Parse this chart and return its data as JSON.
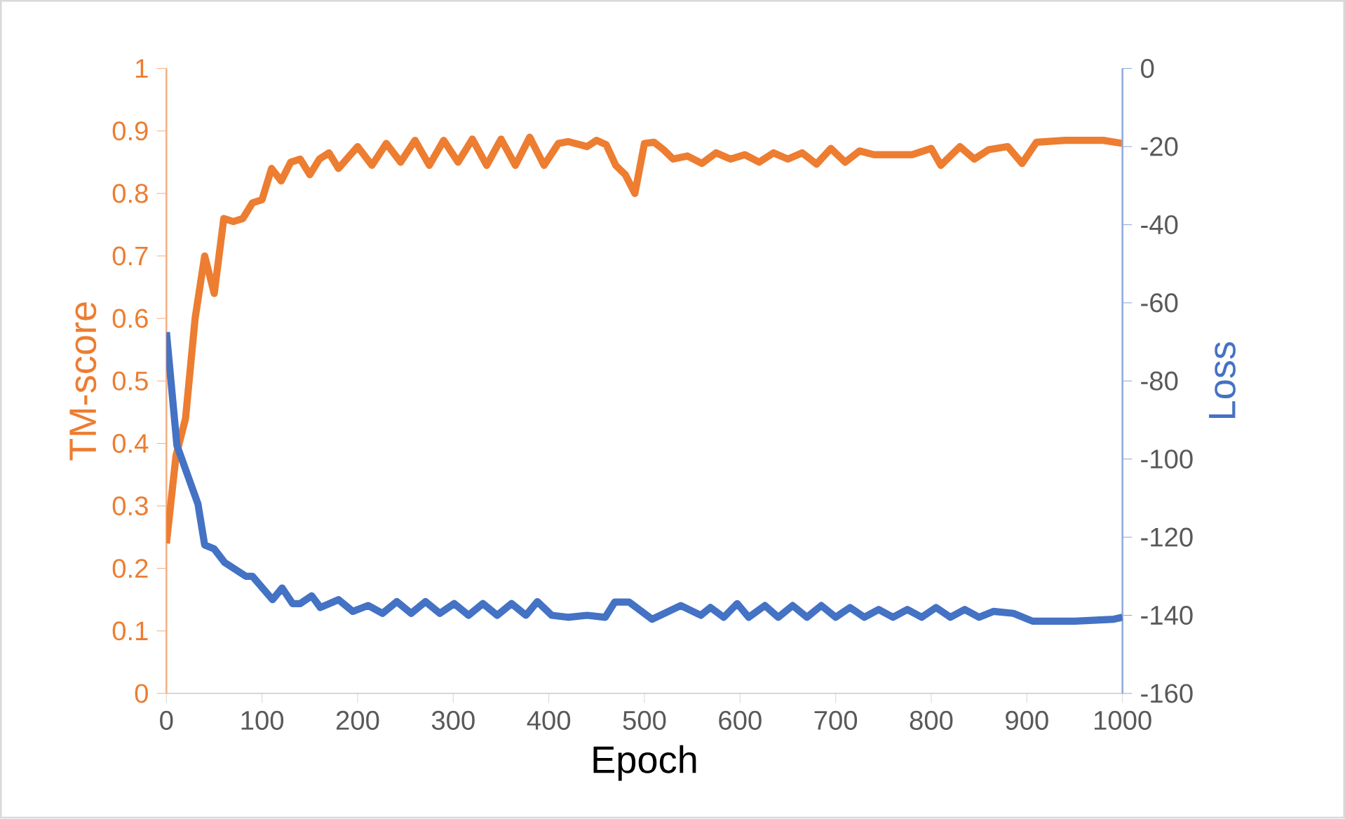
{
  "chart_data": {
    "type": "line",
    "xlabel": "Epoch",
    "ylabel": "TM-score",
    "y2label": "Loss",
    "xlim": [
      0,
      1000
    ],
    "xticks": [
      0,
      100,
      200,
      300,
      400,
      500,
      600,
      700,
      800,
      900,
      1000
    ],
    "ylim": [
      0,
      1
    ],
    "yticks": [
      0,
      0.1,
      0.2,
      0.3,
      0.4,
      0.5,
      0.6,
      0.7,
      0.8,
      0.9,
      1
    ],
    "y2lim": [
      -160,
      0
    ],
    "y2ticks": [
      -160,
      -140,
      -120,
      -100,
      -80,
      -60,
      -40,
      -20,
      0
    ],
    "marker": "none",
    "line_style": "solid",
    "series": [
      {
        "color": "#ed7d31",
        "x": [
          0,
          10,
          20,
          30,
          40,
          50,
          60,
          70,
          80,
          90,
          100,
          110,
          120,
          130,
          140,
          150,
          160,
          170,
          180,
          200,
          215,
          230,
          245,
          260,
          275,
          290,
          305,
          320,
          335,
          350,
          365,
          380,
          395,
          410,
          420,
          440,
          450,
          460,
          470,
          480,
          490,
          500,
          510,
          520,
          530,
          545,
          560,
          575,
          590,
          605,
          620,
          635,
          650,
          665,
          680,
          695,
          710,
          725,
          740,
          760,
          780,
          800,
          810,
          830,
          845,
          860,
          880,
          895,
          910,
          940,
          960,
          980,
          1000
        ],
        "values": [
          0.24,
          0.38,
          0.44,
          0.6,
          0.7,
          0.64,
          0.76,
          0.755,
          0.76,
          0.785,
          0.79,
          0.84,
          0.82,
          0.85,
          0.855,
          0.83,
          0.855,
          0.865,
          0.84,
          0.875,
          0.845,
          0.88,
          0.85,
          0.885,
          0.845,
          0.885,
          0.85,
          0.887,
          0.845,
          0.887,
          0.845,
          0.89,
          0.845,
          0.88,
          0.883,
          0.875,
          0.885,
          0.878,
          0.845,
          0.83,
          0.8,
          0.88,
          0.882,
          0.87,
          0.855,
          0.86,
          0.848,
          0.865,
          0.855,
          0.862,
          0.85,
          0.865,
          0.855,
          0.865,
          0.847,
          0.872,
          0.85,
          0.868,
          0.862,
          0.862,
          0.862,
          0.872,
          0.845,
          0.875,
          0.855,
          0.87,
          0.875,
          0.848,
          0.882,
          0.885,
          0.885,
          0.885,
          0.88
        ]
      },
      {
        "color": "#4472c4",
        "axis": "y2",
        "x": [
          0,
          11,
          33,
          40,
          50,
          61,
          83,
          90,
          111,
          121,
          132,
          140,
          152,
          161,
          180,
          195,
          211,
          226,
          241,
          256,
          271,
          286,
          301,
          316,
          331,
          346,
          361,
          376,
          388,
          403,
          420,
          440,
          459,
          469,
          484,
          508,
          538,
          559,
          569,
          583,
          597,
          609,
          626,
          640,
          655,
          670,
          685,
          700,
          715,
          730,
          745,
          760,
          775,
          790,
          805,
          820,
          835,
          850,
          865,
          886,
          906,
          950,
          991,
          1000
        ],
        "values": [
          -67.5,
          -96.5,
          -111.5,
          -122,
          -123,
          -126.5,
          -130,
          -130,
          -136,
          -133,
          -137,
          -137,
          -135,
          -138,
          -136,
          -139,
          -137.5,
          -139.5,
          -136.5,
          -139.5,
          -136.5,
          -139.5,
          -137,
          -140,
          -137,
          -140,
          -137,
          -140,
          -136.5,
          -140,
          -140.5,
          -140,
          -140.5,
          -136.6,
          -136.6,
          -141,
          -137.5,
          -140,
          -138,
          -140.5,
          -137,
          -140.5,
          -137.5,
          -140.5,
          -137.5,
          -140.5,
          -137.5,
          -140.5,
          -138,
          -140.5,
          -138.5,
          -140.5,
          -138.5,
          -140.5,
          -138,
          -140.5,
          -138.5,
          -140.5,
          -139,
          -139.5,
          -141.5,
          -141.5,
          -141,
          -140.5
        ]
      }
    ]
  }
}
